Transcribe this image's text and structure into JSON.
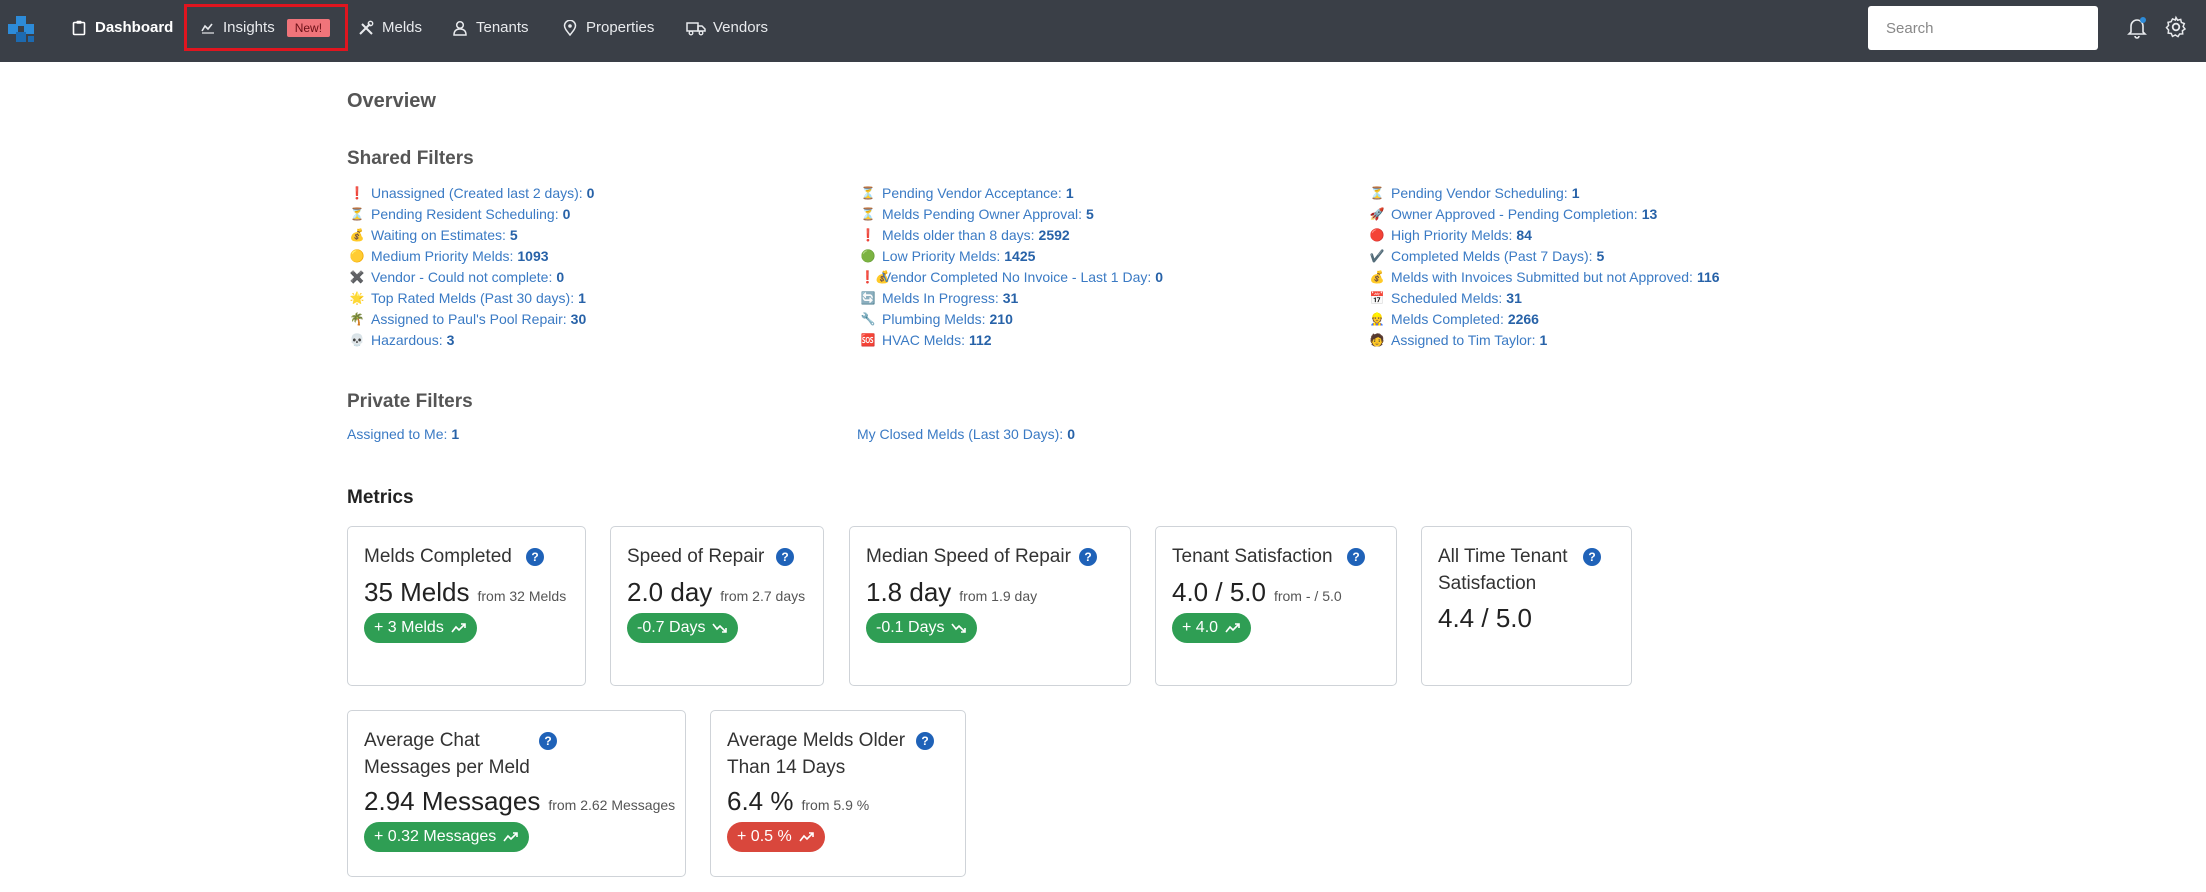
{
  "nav": {
    "dashboard": "Dashboard",
    "insights": "Insights",
    "insights_badge": "New!",
    "melds": "Melds",
    "tenants": "Tenants",
    "properties": "Properties",
    "vendors": "Vendors",
    "search_placeholder": "Search"
  },
  "overview_title": "Overview",
  "shared_filters": {
    "title": "Shared Filters",
    "columns": [
      [
        {
          "icon": "❗",
          "label": "Unassigned (Created last 2 days):",
          "count": "0"
        },
        {
          "icon": "⏳",
          "label": "Pending Resident Scheduling:",
          "count": "0"
        },
        {
          "icon": "💰",
          "label": "Waiting on Estimates:",
          "count": "5"
        },
        {
          "icon": "🟡",
          "label": "Medium Priority Melds:",
          "count": "1093"
        },
        {
          "icon": "✖️",
          "label": "Vendor - Could not complete:",
          "count": "0"
        },
        {
          "icon": "🌟",
          "label": "Top Rated Melds (Past 30 days):",
          "count": "1"
        },
        {
          "icon": "🌴",
          "label": "Assigned to Paul's Pool Repair:",
          "count": "30"
        },
        {
          "icon": "💀",
          "label": "Hazardous:",
          "count": "3"
        }
      ],
      [
        {
          "icon": "⏳",
          "label": "Pending Vendor Acceptance:",
          "count": "1"
        },
        {
          "icon": "⏳",
          "label": "Melds Pending Owner Approval:",
          "count": "5"
        },
        {
          "icon": "❗",
          "label": "Melds older than 8 days:",
          "count": "2592"
        },
        {
          "icon": "🟢",
          "label": "Low Priority Melds:",
          "count": "1425"
        },
        {
          "icon": "❗💰",
          "label": "Vendor Completed No Invoice - Last 1 Day:",
          "count": "0"
        },
        {
          "icon": "🔄",
          "label": "Melds In Progress:",
          "count": "31"
        },
        {
          "icon": "🔧",
          "label": "Plumbing Melds:",
          "count": "210"
        },
        {
          "icon": "🆘",
          "label": "HVAC Melds:",
          "count": "112"
        }
      ],
      [
        {
          "icon": "⏳",
          "label": "Pending Vendor Scheduling:",
          "count": "1"
        },
        {
          "icon": "🚀",
          "label": "Owner Approved - Pending Completion:",
          "count": "13"
        },
        {
          "icon": "🔴",
          "label": "High Priority Melds:",
          "count": "84"
        },
        {
          "icon": "✔️",
          "label": "Completed Melds (Past 7 Days):",
          "count": "5"
        },
        {
          "icon": "💰",
          "label": "Melds with Invoices Submitted but not Approved:",
          "count": "116"
        },
        {
          "icon": "📅",
          "label": "Scheduled Melds:",
          "count": "31"
        },
        {
          "icon": "👷",
          "label": "Melds Completed:",
          "count": "2266"
        },
        {
          "icon": "🧑",
          "label": "Assigned to Tim Taylor:",
          "count": "1"
        }
      ]
    ]
  },
  "private_filters": {
    "title": "Private Filters",
    "items": [
      {
        "label": "Assigned to Me:",
        "count": "1"
      },
      {
        "label": "My Closed Melds (Last 30 Days):",
        "count": "0"
      }
    ]
  },
  "metrics": {
    "title": "Metrics",
    "cards": [
      {
        "title": "Melds Completed",
        "value": "35 Melds",
        "from": "from 32 Melds",
        "delta": "+ 3 Melds",
        "trend": "up",
        "status": "green"
      },
      {
        "title": "Speed of Repair",
        "value": "2.0 day",
        "from": "from 2.7 days",
        "delta": "-0.7 Days",
        "trend": "down",
        "status": "green"
      },
      {
        "title": "Median Speed of Repair",
        "value": "1.8 day",
        "from": "from 1.9 day",
        "delta": "-0.1 Days",
        "trend": "down",
        "status": "green"
      },
      {
        "title": "Tenant Satisfaction",
        "value": "4.0 / 5.0",
        "from": "from - / 5.0",
        "delta": "+ 4.0",
        "trend": "up",
        "status": "green"
      },
      {
        "title_line1": "All Time Tenant",
        "title_line2": "Satisfaction",
        "value": "4.4 / 5.0"
      },
      {
        "title_line1": "Average Chat",
        "title_line2": "Messages per Meld",
        "value": "2.94 Messages",
        "from": "from 2.62 Messages",
        "delta": "+ 0.32 Messages",
        "trend": "up",
        "status": "green"
      },
      {
        "title_line1": "Average Melds Older",
        "title_line2": "Than 14 Days",
        "value": "6.4 %",
        "from": "from 5.9 %",
        "delta": "+ 0.5 %",
        "trend": "up",
        "status": "red"
      }
    ],
    "help_glyph": "?"
  },
  "colors": {
    "topbar": "#3a3f47",
    "link": "#3a7ac4",
    "pill_green": "#2f9e54",
    "pill_red": "#d9473c",
    "help": "#1f62b8",
    "highlight": "#e0151f"
  }
}
